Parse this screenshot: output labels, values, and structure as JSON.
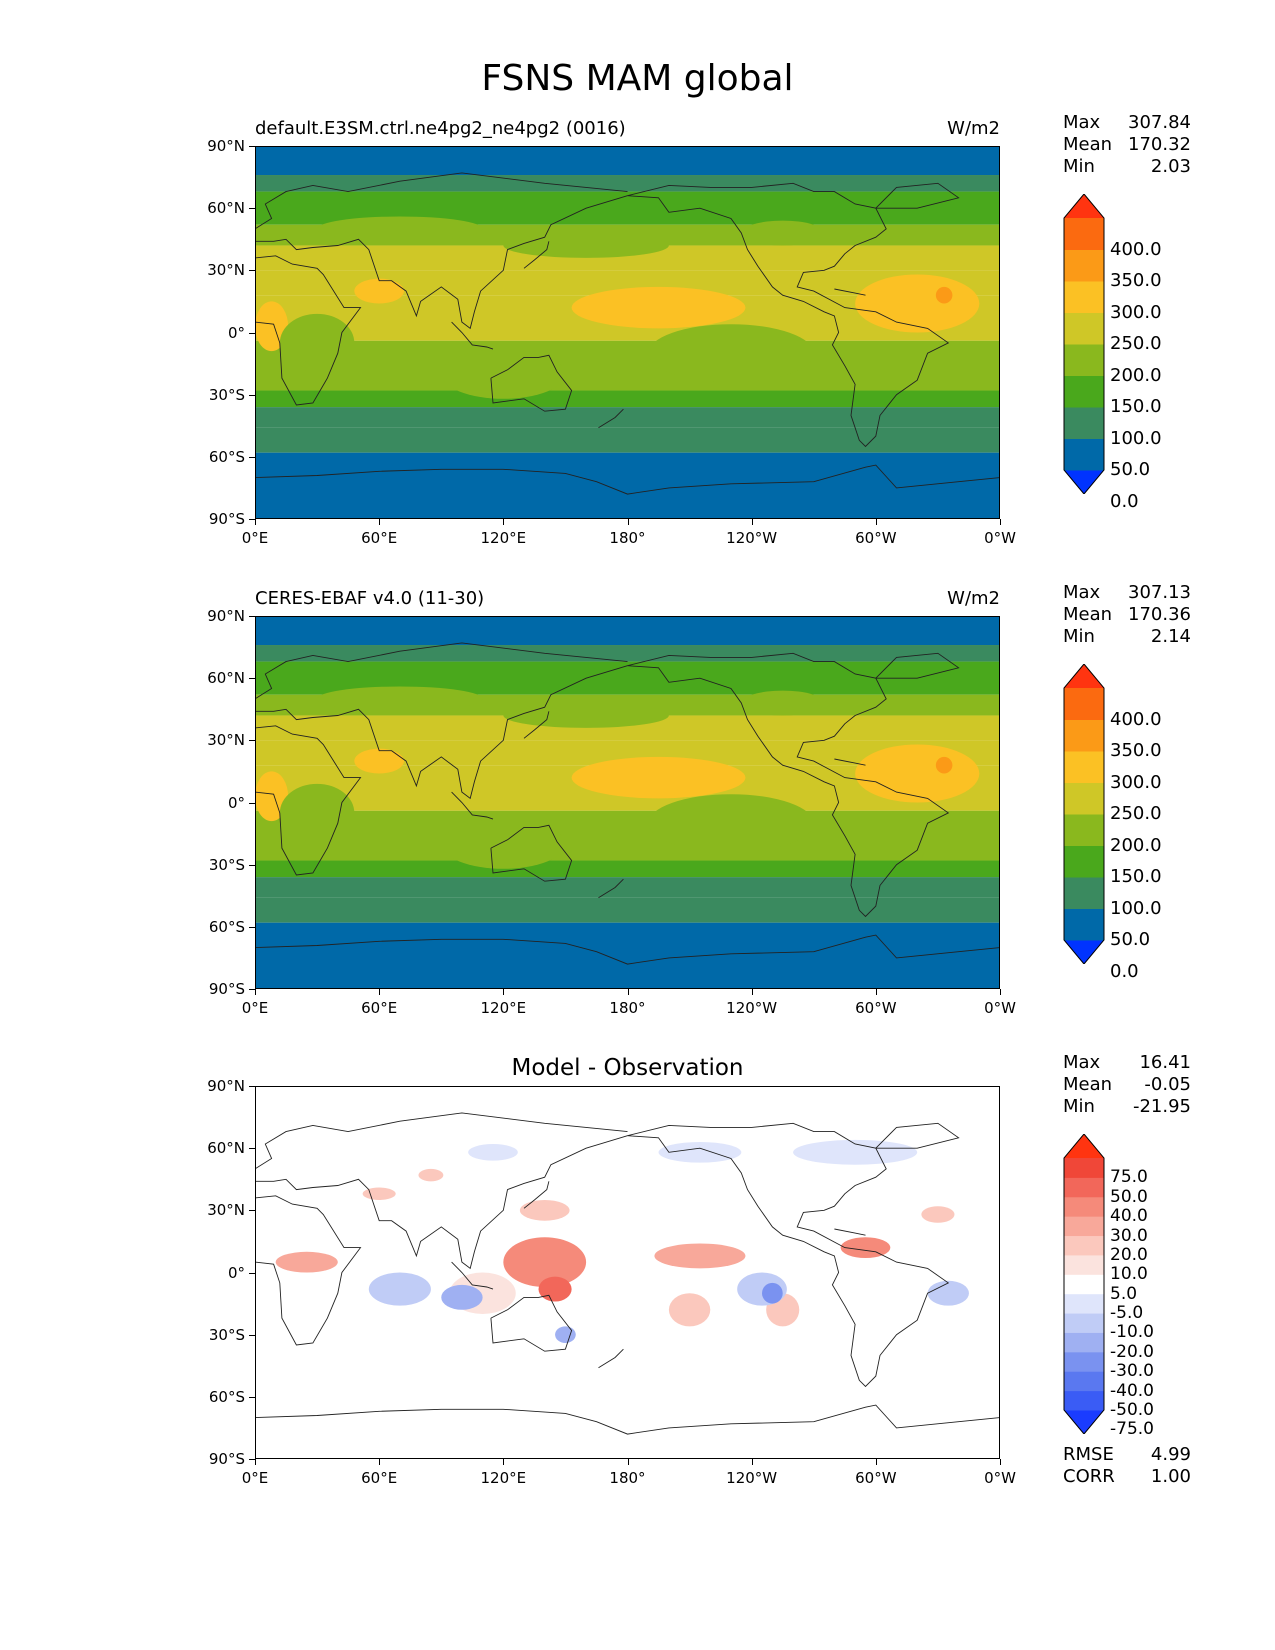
{
  "title": "FSNS MAM global",
  "x_ticks": [
    "0°E",
    "60°E",
    "120°E",
    "180°",
    "120°W",
    "60°W",
    "0°W"
  ],
  "y_ticks": [
    "90°N",
    "60°N",
    "30°N",
    "0°",
    "30°S",
    "60°S",
    "90°S"
  ],
  "panels": [
    {
      "left_title": "default.E3SM.ctrl.ne4pg2_ne4pg2 (0016)",
      "right_title": "W/m2",
      "center_title": "",
      "stats": [
        {
          "label": "Max",
          "value": "307.84"
        },
        {
          "label": "Mean",
          "value": "170.32"
        },
        {
          "label": "Min",
          "value": "2.03"
        }
      ],
      "colorbar_labels": [
        "400.0",
        "350.0",
        "300.0",
        "250.0",
        "200.0",
        "150.0",
        "100.0",
        "50.0",
        "0.0"
      ]
    },
    {
      "left_title": "CERES-EBAF v4.0 (11-30)",
      "right_title": "W/m2",
      "center_title": "",
      "stats": [
        {
          "label": "Max",
          "value": "307.13"
        },
        {
          "label": "Mean",
          "value": "170.36"
        },
        {
          "label": "Min",
          "value": "2.14"
        }
      ],
      "colorbar_labels": [
        "400.0",
        "350.0",
        "300.0",
        "250.0",
        "200.0",
        "150.0",
        "100.0",
        "50.0",
        "0.0"
      ]
    },
    {
      "left_title": "",
      "right_title": "",
      "center_title": "Model - Observation",
      "stats": [
        {
          "label": "Max",
          "value": "16.41"
        },
        {
          "label": "Mean",
          "value": "-0.05"
        },
        {
          "label": "Min",
          "value": "-21.95"
        }
      ],
      "colorbar_labels": [
        "75.0",
        "50.0",
        "40.0",
        "30.0",
        "20.0",
        "10.0",
        "5.0",
        "-5.0",
        "-10.0",
        "-20.0",
        "-30.0",
        "-40.0",
        "-50.0",
        "-75.0"
      ],
      "metrics": [
        {
          "label": "RMSE",
          "value": "4.99"
        },
        {
          "label": "CORR",
          "value": "1.00"
        }
      ]
    }
  ],
  "colors": {
    "abs_bins": [
      "#0033ff",
      "#0069a8",
      "#3a8a5f",
      "#4aa81c",
      "#8ab81e",
      "#cfc727",
      "#fbc124",
      "#fb9a17",
      "#fb6a10",
      "#ff3410"
    ],
    "diff_bins": [
      "#1a3cff",
      "#3a5cf5",
      "#5a78f0",
      "#7a92f0",
      "#9fb0f2",
      "#c0ccf6",
      "#dfe5fb",
      "#ffffff",
      "#fbe3de",
      "#fbc8bd",
      "#f8a89a",
      "#f58a7a",
      "#f2675a",
      "#f04738",
      "#ff3410"
    ]
  }
}
